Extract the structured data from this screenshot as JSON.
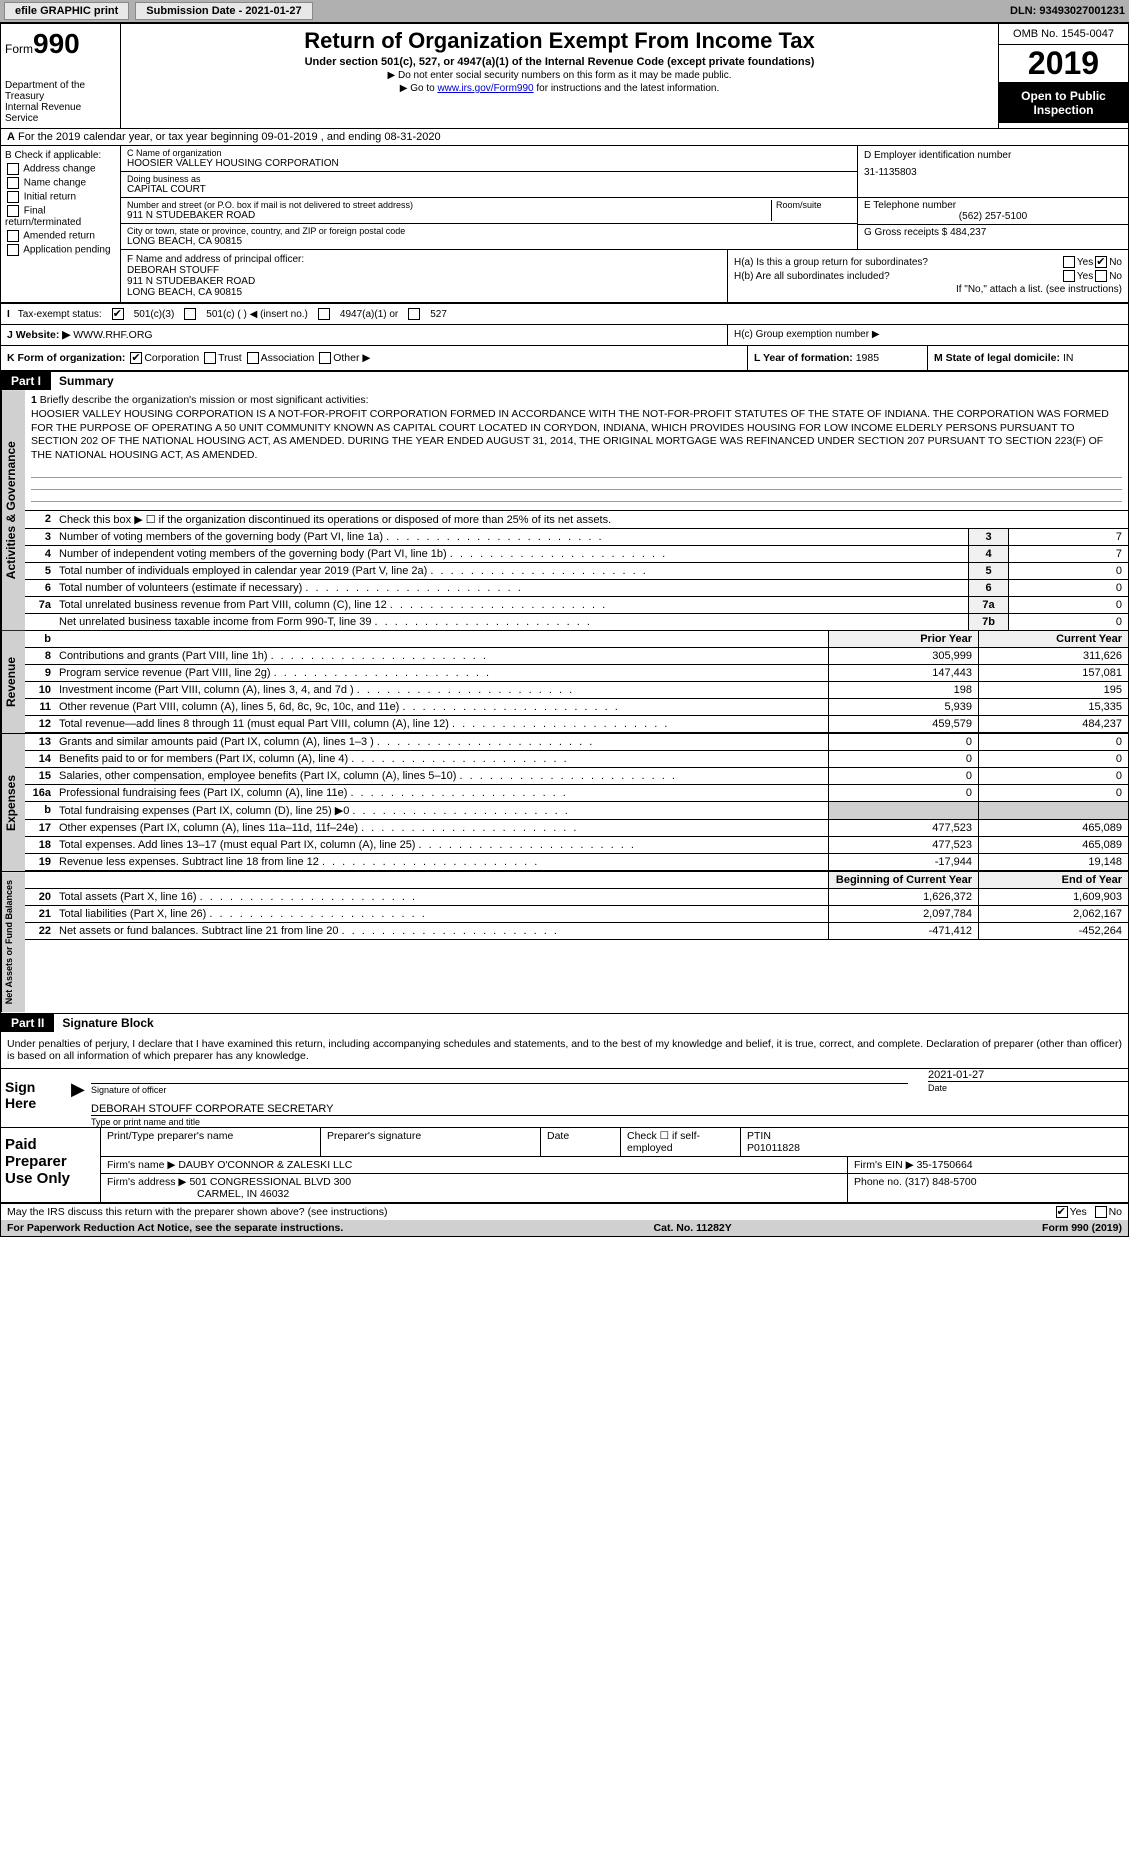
{
  "toolbar": {
    "efile": "efile GRAPHIC print",
    "sub_label": "Submission Date - 2021-01-27",
    "dln": "DLN: 93493027001231"
  },
  "header": {
    "form_label": "Form",
    "form_number": "990",
    "dept": "Department of the Treasury",
    "irs": "Internal Revenue Service",
    "title": "Return of Organization Exempt From Income Tax",
    "subtitle": "Under section 501(c), 527, or 4947(a)(1) of the Internal Revenue Code (except private foundations)",
    "note1": "▶ Do not enter social security numbers on this form as it may be made public.",
    "note2_pre": "▶ Go to ",
    "note2_link": "www.irs.gov/Form990",
    "note2_post": " for instructions and the latest information.",
    "omb": "OMB No. 1545-0047",
    "year": "2019",
    "inspection": "Open to Public Inspection"
  },
  "period": {
    "text": "For the 2019 calendar year, or tax year beginning 09-01-2019   , and ending 08-31-2020",
    "prefix": "A"
  },
  "box_b": {
    "label": "B Check if applicable:",
    "items": [
      "Address change",
      "Name change",
      "Initial return",
      "Final return/terminated",
      "Amended return",
      "Application pending"
    ]
  },
  "box_c": {
    "name_label": "C Name of organization",
    "name": "HOOSIER VALLEY HOUSING CORPORATION",
    "dba_label": "Doing business as",
    "dba": "CAPITAL COURT",
    "street_label": "Number and street (or P.O. box if mail is not delivered to street address)",
    "room_label": "Room/suite",
    "street": "911 N STUDEBAKER ROAD",
    "city_label": "City or town, state or province, country, and ZIP or foreign postal code",
    "city": "LONG BEACH, CA  90815"
  },
  "box_d": {
    "label": "D Employer identification number",
    "value": "31-1135803"
  },
  "box_e": {
    "label": "E Telephone number",
    "value": "(562) 257-5100"
  },
  "box_g": {
    "label": "G Gross receipts $",
    "value": "484,237"
  },
  "box_f": {
    "label": "F Name and address of principal officer:",
    "name": "DEBORAH STOUFF",
    "street": "911 N STUDEBAKER ROAD",
    "city": "LONG BEACH, CA  90815"
  },
  "box_h": {
    "ha_label": "H(a)  Is this a group return for subordinates?",
    "hb_label": "H(b)  Are all subordinates included?",
    "hb_note": "If \"No,\" attach a list. (see instructions)",
    "hc_label": "H(c)  Group exemption number ▶",
    "yes": "Yes",
    "no": "No"
  },
  "box_i": {
    "label": "Tax-exempt status:",
    "opts": [
      "501(c)(3)",
      "501(c) (  ) ◀ (insert no.)",
      "4947(a)(1) or",
      "527"
    ]
  },
  "box_j": {
    "label": "Website: ▶",
    "value": "WWW.RHF.ORG"
  },
  "box_k": {
    "label": "K Form of organization:",
    "opts": [
      "Corporation",
      "Trust",
      "Association",
      "Other ▶"
    ]
  },
  "box_l": {
    "label": "L Year of formation:",
    "value": "1985"
  },
  "box_m": {
    "label": "M State of legal domicile:",
    "value": "IN"
  },
  "part1": {
    "label": "Part I",
    "title": "Summary"
  },
  "mission": {
    "num": "1",
    "prompt": "Briefly describe the organization's mission or most significant activities:",
    "text": "HOOSIER VALLEY HOUSING CORPORATION IS A NOT-FOR-PROFIT CORPORATION FORMED IN ACCORDANCE WITH THE NOT-FOR-PROFIT STATUTES OF THE STATE OF INDIANA. THE CORPORATION WAS FORMED FOR THE PURPOSE OF OPERATING A 50 UNIT COMMUNITY KNOWN AS CAPITAL COURT LOCATED IN CORYDON, INDIANA, WHICH PROVIDES HOUSING FOR LOW INCOME ELDERLY PERSONS PURSUANT TO SECTION 202 OF THE NATIONAL HOUSING ACT, AS AMENDED. DURING THE YEAR ENDED AUGUST 31, 2014, THE ORIGINAL MORTGAGE WAS REFINANCED UNDER SECTION 207 PURSUANT TO SECTION 223(F) OF THE NATIONAL HOUSING ACT, AS AMENDED."
  },
  "governance": {
    "q2": "Check this box ▶ ☐ if the organization discontinued its operations or disposed of more than 25% of its net assets.",
    "rows": [
      {
        "n": "3",
        "t": "Number of voting members of the governing body (Part VI, line 1a)",
        "box": "3",
        "v": "7"
      },
      {
        "n": "4",
        "t": "Number of independent voting members of the governing body (Part VI, line 1b)",
        "box": "4",
        "v": "7"
      },
      {
        "n": "5",
        "t": "Total number of individuals employed in calendar year 2019 (Part V, line 2a)",
        "box": "5",
        "v": "0"
      },
      {
        "n": "6",
        "t": "Total number of volunteers (estimate if necessary)",
        "box": "6",
        "v": "0"
      },
      {
        "n": "7a",
        "t": "Total unrelated business revenue from Part VIII, column (C), line 12",
        "box": "7a",
        "v": "0"
      },
      {
        "n": "",
        "t": "Net unrelated business taxable income from Form 990-T, line 39",
        "box": "7b",
        "v": "0"
      }
    ]
  },
  "revenue": {
    "prior_label": "Prior Year",
    "current_label": "Current Year",
    "rows": [
      {
        "n": "8",
        "t": "Contributions and grants (Part VIII, line 1h)",
        "p": "305,999",
        "c": "311,626"
      },
      {
        "n": "9",
        "t": "Program service revenue (Part VIII, line 2g)",
        "p": "147,443",
        "c": "157,081"
      },
      {
        "n": "10",
        "t": "Investment income (Part VIII, column (A), lines 3, 4, and 7d )",
        "p": "198",
        "c": "195"
      },
      {
        "n": "11",
        "t": "Other revenue (Part VIII, column (A), lines 5, 6d, 8c, 9c, 10c, and 11e)",
        "p": "5,939",
        "c": "15,335"
      },
      {
        "n": "12",
        "t": "Total revenue—add lines 8 through 11 (must equal Part VIII, column (A), line 12)",
        "p": "459,579",
        "c": "484,237"
      }
    ]
  },
  "expenses": {
    "rows": [
      {
        "n": "13",
        "t": "Grants and similar amounts paid (Part IX, column (A), lines 1–3 )",
        "p": "0",
        "c": "0"
      },
      {
        "n": "14",
        "t": "Benefits paid to or for members (Part IX, column (A), line 4)",
        "p": "0",
        "c": "0"
      },
      {
        "n": "15",
        "t": "Salaries, other compensation, employee benefits (Part IX, column (A), lines 5–10)",
        "p": "0",
        "c": "0"
      },
      {
        "n": "16a",
        "t": "Professional fundraising fees (Part IX, column (A), line 11e)",
        "p": "0",
        "c": "0"
      },
      {
        "n": "b",
        "t": "Total fundraising expenses (Part IX, column (D), line 25) ▶0",
        "p": "",
        "c": ""
      },
      {
        "n": "17",
        "t": "Other expenses (Part IX, column (A), lines 11a–11d, 11f–24e)",
        "p": "477,523",
        "c": "465,089"
      },
      {
        "n": "18",
        "t": "Total expenses. Add lines 13–17 (must equal Part IX, column (A), line 25)",
        "p": "477,523",
        "c": "465,089"
      },
      {
        "n": "19",
        "t": "Revenue less expenses. Subtract line 18 from line 12",
        "p": "-17,944",
        "c": "19,148"
      }
    ]
  },
  "netassets": {
    "begin_label": "Beginning of Current Year",
    "end_label": "End of Year",
    "rows": [
      {
        "n": "20",
        "t": "Total assets (Part X, line 16)",
        "p": "1,626,372",
        "c": "1,609,903"
      },
      {
        "n": "21",
        "t": "Total liabilities (Part X, line 26)",
        "p": "2,097,784",
        "c": "2,062,167"
      },
      {
        "n": "22",
        "t": "Net assets or fund balances. Subtract line 21 from line 20",
        "p": "-471,412",
        "c": "-452,264"
      }
    ]
  },
  "part2": {
    "label": "Part II",
    "title": "Signature Block",
    "perjury": "Under penalties of perjury, I declare that I have examined this return, including accompanying schedules and statements, and to the best of my knowledge and belief, it is true, correct, and complete. Declaration of preparer (other than officer) is based on all information of which preparer has any knowledge."
  },
  "sign": {
    "here": "Sign Here",
    "sig_label": "Signature of officer",
    "date_label": "Date",
    "date": "2021-01-27",
    "name": "DEBORAH STOUFF CORPORATE SECRETARY",
    "name_label": "Type or print name and title"
  },
  "preparer": {
    "label": "Paid Preparer Use Only",
    "print_label": "Print/Type preparer's name",
    "sig_label": "Preparer's signature",
    "date_label": "Date",
    "self_label": "Check ☐ if self-employed",
    "ptin_label": "PTIN",
    "ptin": "P01011828",
    "firm_name_label": "Firm's name    ▶",
    "firm_name": "DAUBY O'CONNOR & ZALESKI LLC",
    "firm_ein_label": "Firm's EIN ▶",
    "firm_ein": "35-1750664",
    "firm_addr_label": "Firm's address ▶",
    "firm_addr": "501 CONGRESSIONAL BLVD 300",
    "firm_city": "CARMEL, IN  46032",
    "phone_label": "Phone no.",
    "phone": "(317) 848-5700"
  },
  "footer": {
    "discuss": "May the IRS discuss this return with the preparer shown above? (see instructions)",
    "yes": "Yes",
    "no": "No",
    "paperwork": "For Paperwork Reduction Act Notice, see the separate instructions.",
    "cat": "Cat. No. 11282Y",
    "form": "Form 990 (2019)"
  },
  "labels": {
    "vert_governance": "Activities & Governance",
    "vert_revenue": "Revenue",
    "vert_expenses": "Expenses",
    "vert_netassets": "Net Assets or Fund Balances"
  }
}
